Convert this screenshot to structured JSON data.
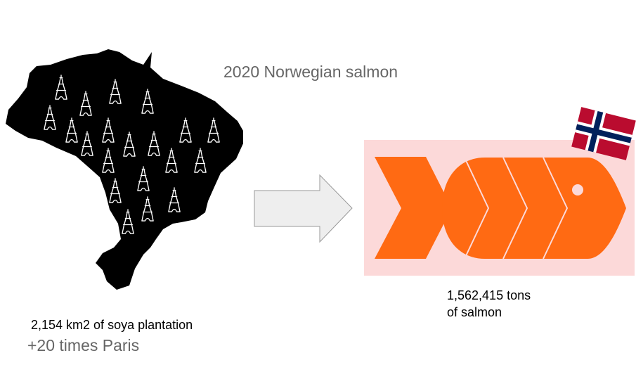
{
  "title": "2020 Norwegian salmon",
  "left_caption": {
    "line1": "2,154 km2 of soya plantation",
    "line2": "+20 times Paris"
  },
  "right_caption": {
    "line1": "1,562,415 tons",
    "line2": "of salmon"
  },
  "icons": {
    "map": "brazil-map-icon",
    "tower": "eiffel-tower-icon",
    "arrow": "right-arrow-icon",
    "fish": "salmon-fish-icon",
    "flag": "norway-flag-icon"
  },
  "colors": {
    "map_fill": "#000000",
    "arrow_fill": "#eeeeee",
    "arrow_stroke": "#999999",
    "fish_background": "#fcd9d9",
    "fish_fill": "#ff6a13",
    "flag_red": "#ba0c2f",
    "flag_blue": "#00205b",
    "flag_white": "#ffffff",
    "caption_dark": "#000000",
    "caption_gray": "#666666"
  }
}
